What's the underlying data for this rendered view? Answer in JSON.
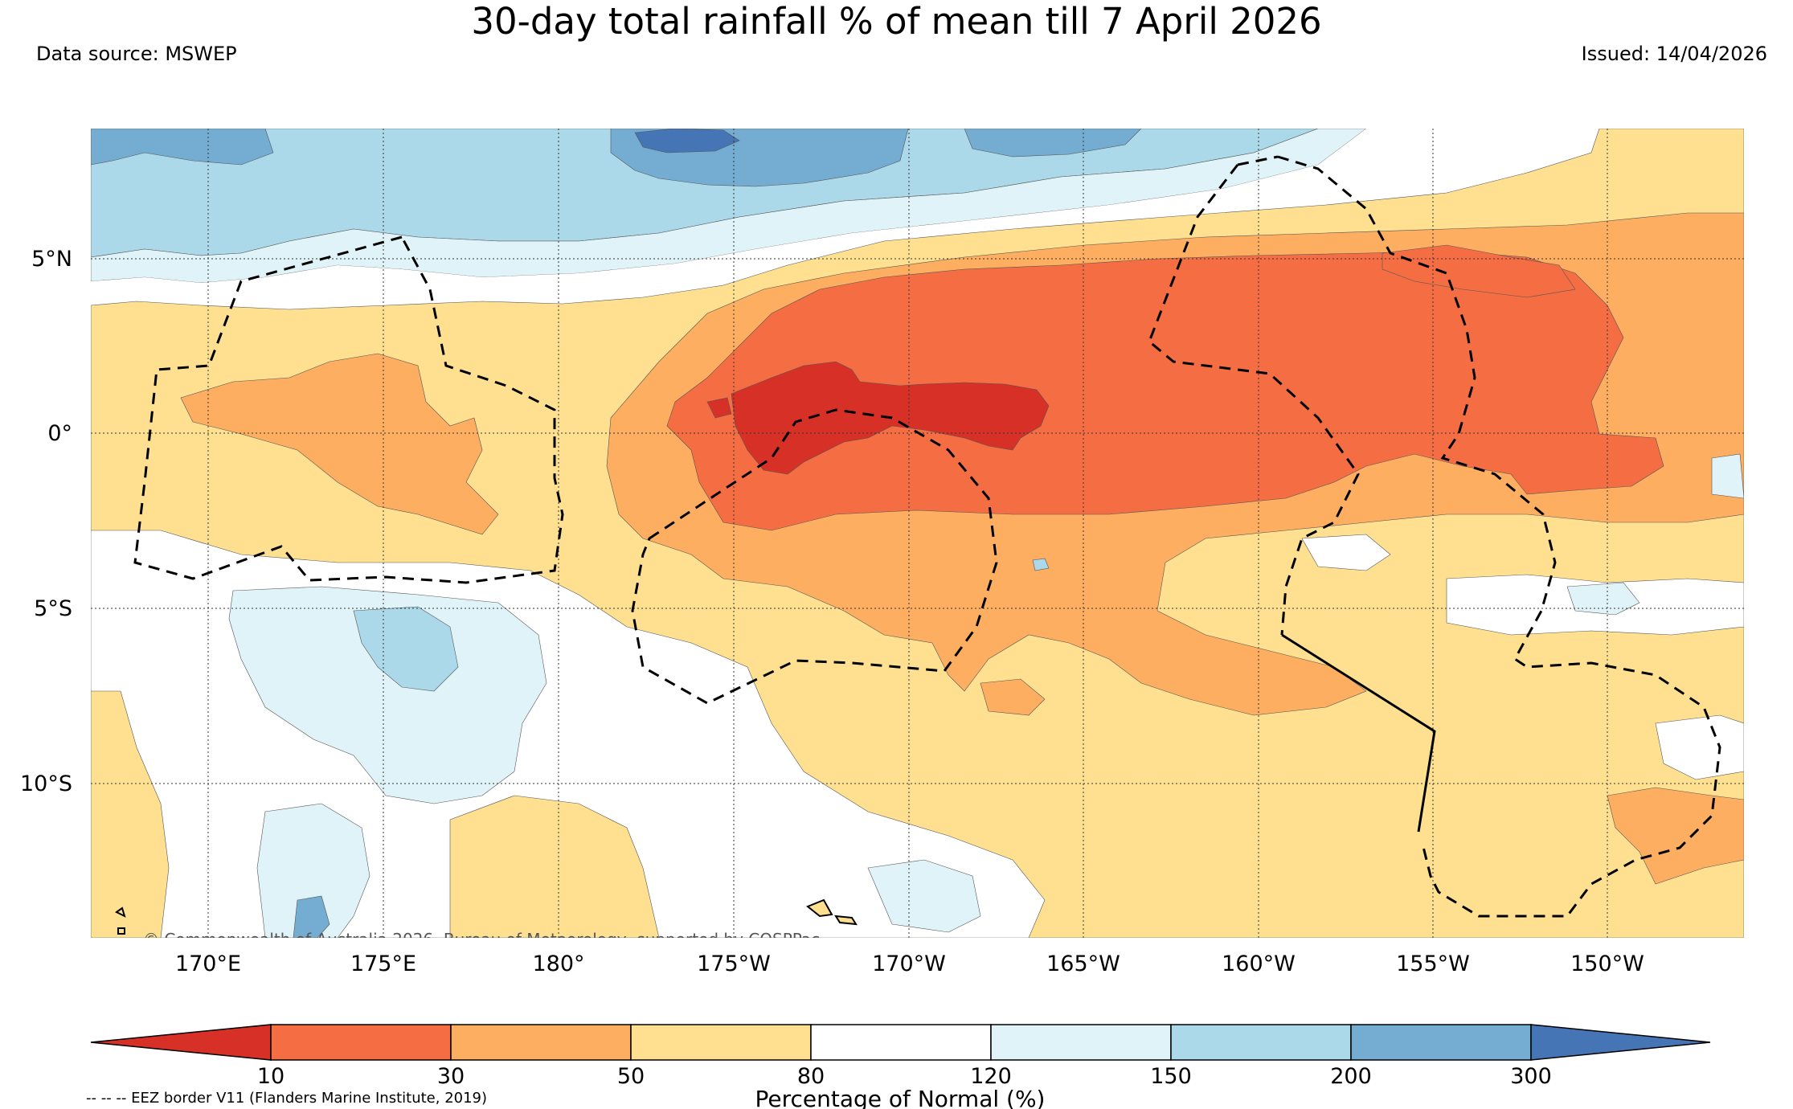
{
  "header": {
    "title": "30-day total rainfall % of mean till 7 April 2026",
    "data_source": "Data source: MSWEP",
    "issued": "Issued: 14/04/2026"
  },
  "map": {
    "latitude_labels": [
      "5°N",
      "0°",
      "5°S",
      "10°S"
    ],
    "longitude_labels": [
      "170°E",
      "175°E",
      "180°",
      "175°W",
      "170°W",
      "165°W",
      "160°W",
      "155°W",
      "150°W"
    ],
    "copyright": "© Commonwealth of Australia 2026, Bureau of Meteorology, supported by COSPPac",
    "eez_legend": "-- -- -- EEZ border V11 (Flanders Marine Institute, 2019)"
  },
  "colorbar": {
    "label": "Percentage of Normal (%)",
    "ticks": [
      "10",
      "30",
      "50",
      "80",
      "120",
      "150",
      "200",
      "300"
    ],
    "colors": {
      "below_10": "#d73027",
      "b10_30": "#f46d43",
      "b30_50": "#fdae61",
      "b50_80": "#fee090",
      "b80_120": "#ffffff",
      "b120_150": "#e0f3f8",
      "b150_200": "#abd9e9",
      "b200_300": "#74add1",
      "above_300": "#4575b4"
    }
  }
}
